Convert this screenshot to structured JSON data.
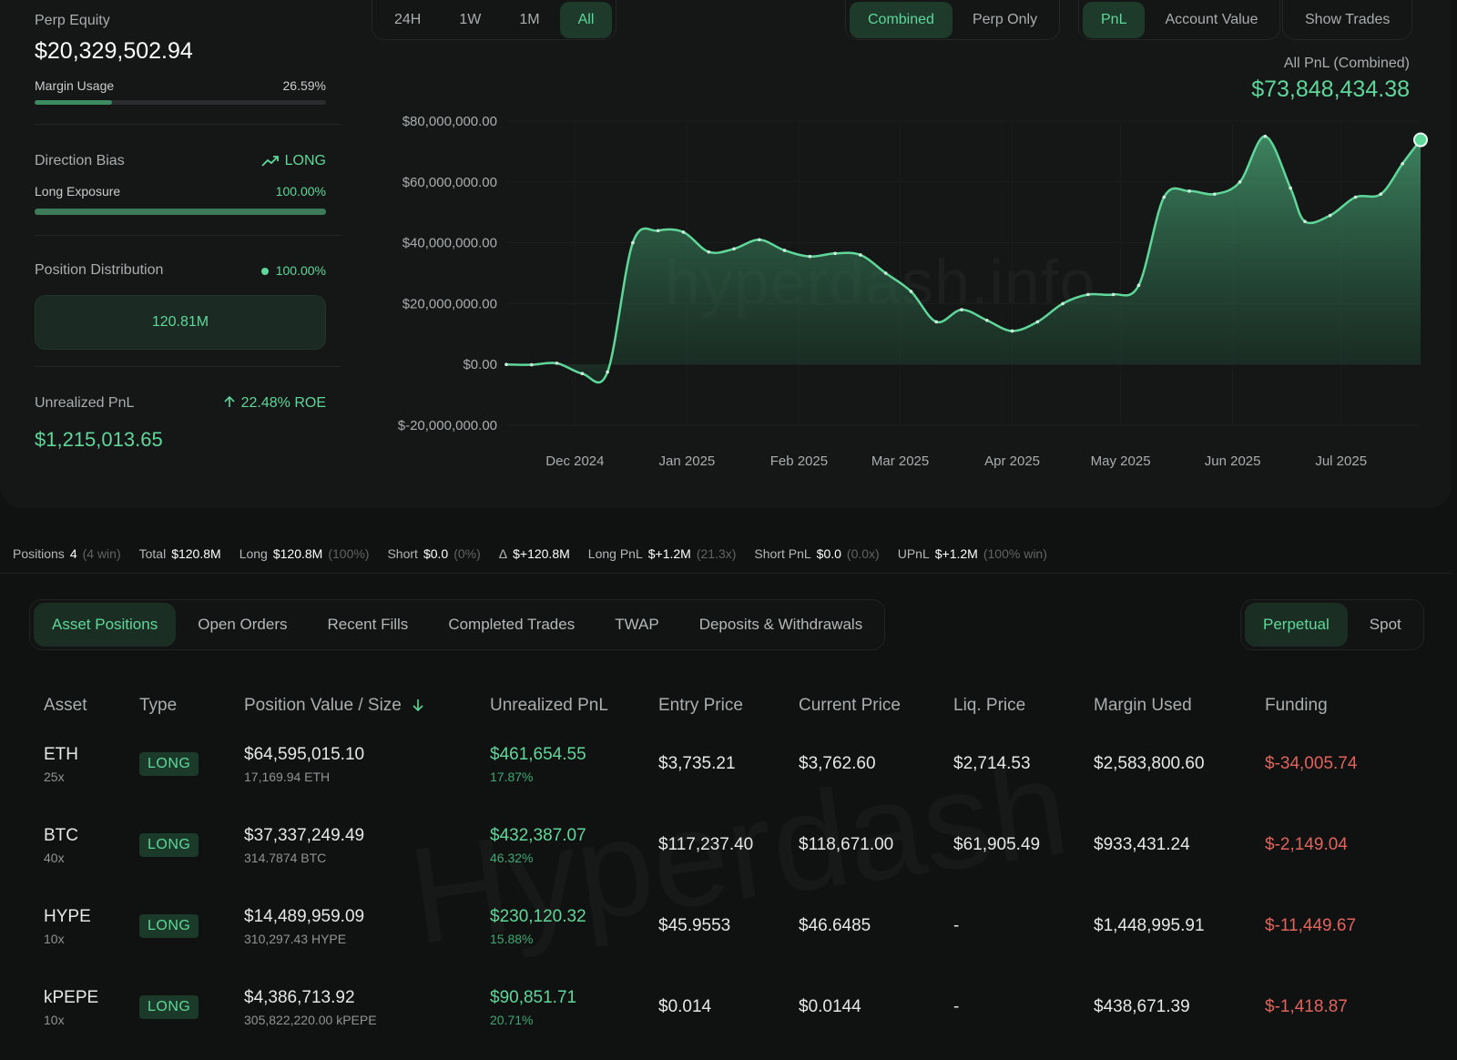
{
  "summary": {
    "equity_label": "Perp Equity",
    "equity_value": "$20,329,502.94",
    "margin_label": "Margin Usage",
    "margin_value": "26.59%",
    "margin_fraction": 0.2659,
    "bias_label": "Direction Bias",
    "bias_value": "LONG",
    "exposure_label": "Long Exposure",
    "exposure_value": "100.00%",
    "exposure_fraction": 1.0,
    "dist_label": "Position Distribution",
    "dist_value": "100.00%",
    "dist_box": "120.81M",
    "upnl_label": "Unrealized PnL",
    "upnl_roe": "22.48% ROE",
    "upnl_value": "$1,215,013.65"
  },
  "controls": {
    "range": [
      "24H",
      "1W",
      "1M",
      "All"
    ],
    "range_active": "All",
    "mode": [
      "Combined",
      "Perp Only"
    ],
    "mode_active": "Combined",
    "metric": [
      "PnL",
      "Account Value"
    ],
    "metric_active": "PnL",
    "show_trades": "Show Trades"
  },
  "chart_header": {
    "label": "All PnL (Combined)",
    "value": "$73,848,434.38",
    "watermark": "hyperdash.info"
  },
  "chart_data": {
    "type": "area",
    "title": "",
    "xlabel": "",
    "ylabel": "",
    "ylim": [
      -20000000,
      80000000
    ],
    "y_ticks": [
      80000000,
      60000000,
      40000000,
      20000000,
      0,
      -20000000
    ],
    "y_tick_labels": [
      "$80,000,000.00",
      "$60,000,000.00",
      "$40,000,000.00",
      "$20,000,000.00",
      "$0.00",
      "$-20,000,000.00"
    ],
    "x_tick_labels": [
      "Dec 2024",
      "Jan 2025",
      "Feb 2025",
      "Mar 2025",
      "Apr 2025",
      "May 2025",
      "Jun 2025",
      "Jul 2025"
    ],
    "x_tick_dates": [
      "2024-12-01",
      "2025-01-01",
      "2025-02-01",
      "2025-03-01",
      "2025-04-01",
      "2025-05-01",
      "2025-06-01",
      "2025-07-01"
    ],
    "x_range": [
      "2024-11-12",
      "2025-07-23"
    ],
    "grid": true,
    "color": "#5fd79a",
    "points": [
      [
        "2024-11-12",
        0
      ],
      [
        "2024-11-19",
        -100000
      ],
      [
        "2024-11-26",
        400000
      ],
      [
        "2024-12-03",
        -3000000
      ],
      [
        "2024-12-10",
        -2500000
      ],
      [
        "2024-12-17",
        40000000
      ],
      [
        "2024-12-24",
        44000000
      ],
      [
        "2024-12-31",
        43500000
      ],
      [
        "2025-01-07",
        37000000
      ],
      [
        "2025-01-14",
        38000000
      ],
      [
        "2025-01-21",
        41000000
      ],
      [
        "2025-01-28",
        37500000
      ],
      [
        "2025-02-04",
        35500000
      ],
      [
        "2025-02-11",
        36500000
      ],
      [
        "2025-02-18",
        36000000
      ],
      [
        "2025-02-25",
        30000000
      ],
      [
        "2025-03-04",
        24000000
      ],
      [
        "2025-03-11",
        14000000
      ],
      [
        "2025-03-18",
        18000000
      ],
      [
        "2025-03-25",
        14500000
      ],
      [
        "2025-04-01",
        11000000
      ],
      [
        "2025-04-08",
        14000000
      ],
      [
        "2025-04-15",
        20000000
      ],
      [
        "2025-04-22",
        23000000
      ],
      [
        "2025-04-29",
        23000000
      ],
      [
        "2025-05-06",
        26000000
      ],
      [
        "2025-05-13",
        55000000
      ],
      [
        "2025-05-20",
        57000000
      ],
      [
        "2025-05-27",
        56000000
      ],
      [
        "2025-06-03",
        60000000
      ],
      [
        "2025-06-10",
        75000000
      ],
      [
        "2025-06-17",
        58000000
      ],
      [
        "2025-06-21",
        47000000
      ],
      [
        "2025-06-28",
        49000000
      ],
      [
        "2025-07-05",
        55000000
      ],
      [
        "2025-07-12",
        56000000
      ],
      [
        "2025-07-18",
        66000000
      ],
      [
        "2025-07-23",
        73848434.38
      ]
    ]
  },
  "strip": [
    {
      "k": "Positions",
      "v": "4",
      "extra": "(4 win)",
      "v_green": false
    },
    {
      "k": "Total",
      "v": "$120.8M",
      "extra": "",
      "v_green": false
    },
    {
      "k": "Long",
      "v": "$120.8M",
      "extra": "(100%)",
      "v_green": false
    },
    {
      "k": "Short",
      "v": "$0.0",
      "extra": "(0%)",
      "v_green": false
    },
    {
      "k": "Δ",
      "v": "$+120.8M",
      "extra": "",
      "v_green": true
    },
    {
      "k": "Long PnL",
      "v": "$+1.2M",
      "extra": "(21.3x)",
      "v_green": true
    },
    {
      "k": "Short PnL",
      "v": "$0.0",
      "extra": "(0.0x)",
      "v_green": true
    },
    {
      "k": "UPnL",
      "v": "$+1.2M",
      "extra": "(100% win)",
      "v_green": true
    }
  ],
  "tabs": {
    "items": [
      "Asset Positions",
      "Open Orders",
      "Recent Fills",
      "Completed Trades",
      "TWAP",
      "Deposits & Withdrawals"
    ],
    "active": "Asset Positions",
    "type_items": [
      "Perpetual",
      "Spot"
    ],
    "type_active": "Perpetual"
  },
  "table": {
    "headers": [
      "Asset",
      "Type",
      "Position Value / Size",
      "Unrealized PnL",
      "Entry Price",
      "Current Price",
      "Liq. Price",
      "Margin Used",
      "Funding"
    ],
    "rows": [
      {
        "asset": "ETH",
        "lev": "25x",
        "type": "LONG",
        "value": "$64,595,015.10",
        "size": "17,169.94 ETH",
        "upnl": "$461,654.55",
        "upnl_pct": "17.87%",
        "entry": "$3,735.21",
        "current": "$3,762.60",
        "liq": "$2,714.53",
        "margin": "$2,583,800.60",
        "funding": "$-34,005.74"
      },
      {
        "asset": "BTC",
        "lev": "40x",
        "type": "LONG",
        "value": "$37,337,249.49",
        "size": "314.7874 BTC",
        "upnl": "$432,387.07",
        "upnl_pct": "46.32%",
        "entry": "$117,237.40",
        "current": "$118,671.00",
        "liq": "$61,905.49",
        "margin": "$933,431.24",
        "funding": "$-2,149.04"
      },
      {
        "asset": "HYPE",
        "lev": "10x",
        "type": "LONG",
        "value": "$14,489,959.09",
        "size": "310,297.43 HYPE",
        "upnl": "$230,120.32",
        "upnl_pct": "15.88%",
        "entry": "$45.9553",
        "current": "$46.6485",
        "liq": "-",
        "margin": "$1,448,995.91",
        "funding": "$-11,449.67"
      },
      {
        "asset": "kPEPE",
        "lev": "10x",
        "type": "LONG",
        "value": "$4,386,713.92",
        "size": "305,822,220.00 kPEPE",
        "upnl": "$90,851.71",
        "upnl_pct": "20.71%",
        "entry": "$0.014",
        "current": "$0.0144",
        "liq": "-",
        "margin": "$438,671.39",
        "funding": "$-1,418.87"
      }
    ],
    "watermark": "Hyperdash"
  }
}
